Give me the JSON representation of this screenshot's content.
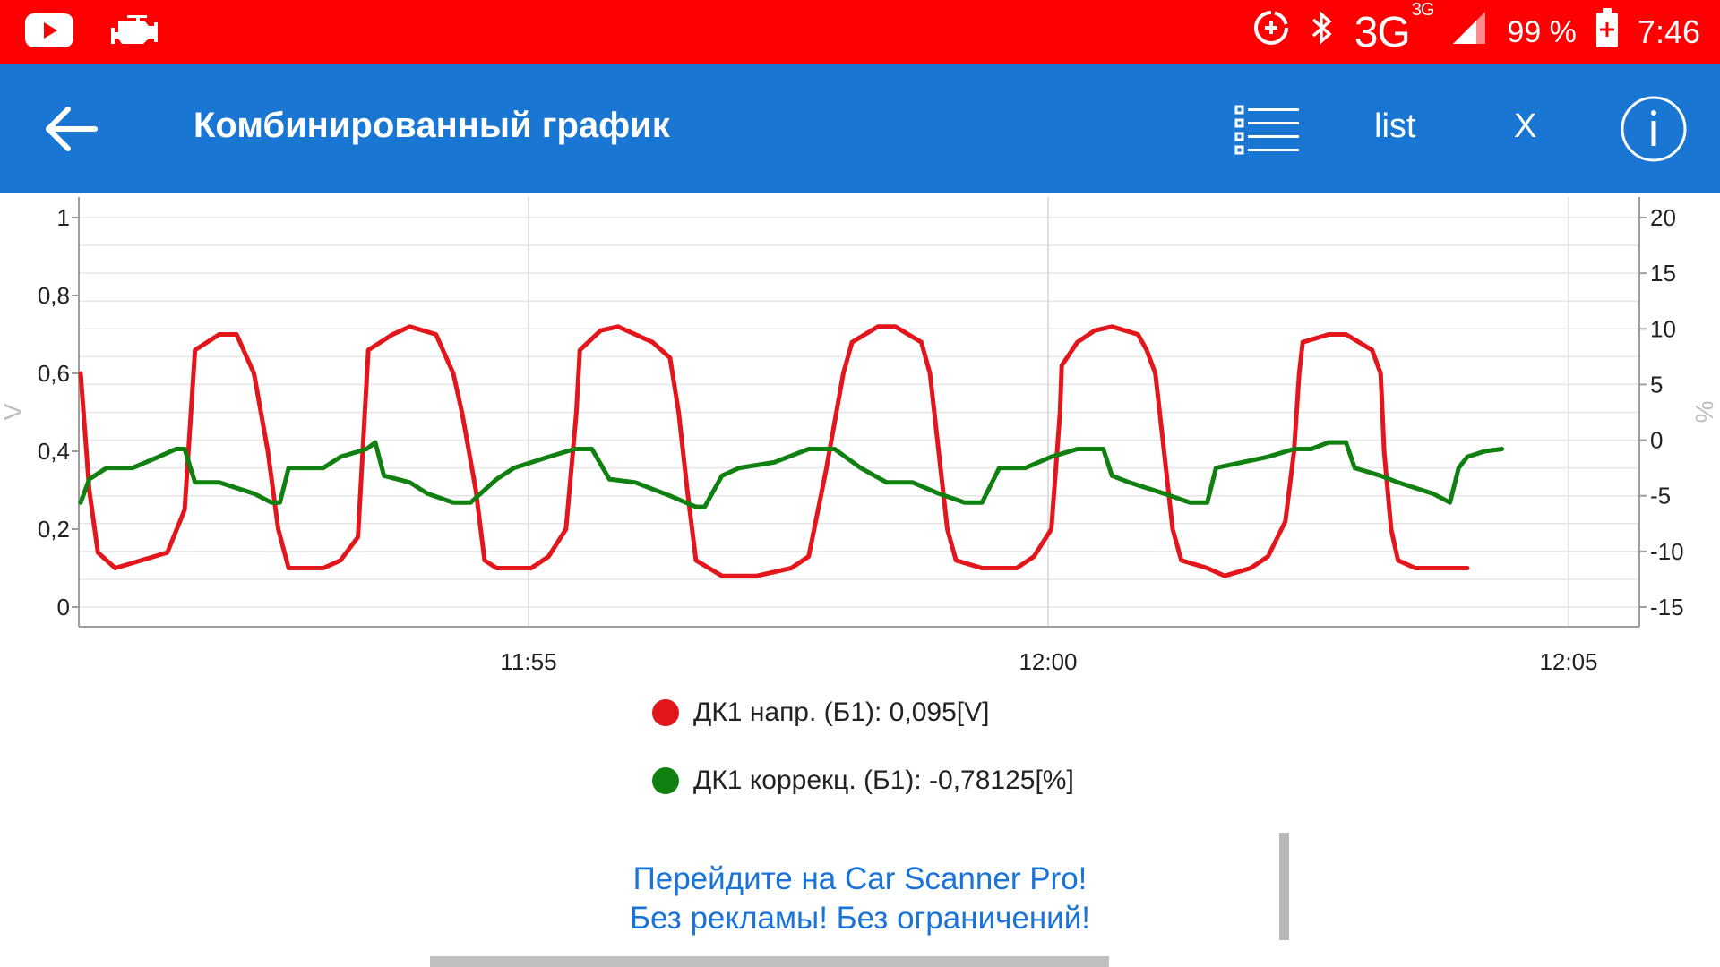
{
  "status_bar": {
    "background": "#ff0000",
    "left_icons": [
      "youtube-icon",
      "check-engine-icon"
    ],
    "right_icons": [
      "data-saver-icon",
      "bluetooth-icon",
      "signal-icon",
      "battery-charging-icon"
    ],
    "network": "3G",
    "network_super": "3G",
    "battery": "99 %",
    "time": "7:46"
  },
  "app_bar": {
    "background": "#1976d2",
    "back_icon": "arrow-left-icon",
    "title": "Комбинированный график",
    "list_icon": "list-icon",
    "list_label": "list",
    "close_label": "X",
    "info_icon": "info-icon"
  },
  "chart_data": {
    "type": "line",
    "x_ticks": [
      "11:55",
      "12:00",
      "12:05"
    ],
    "y_left": {
      "unit": "V",
      "ticks": [
        "0",
        "0,2",
        "0,4",
        "0,6",
        "0,8",
        "1"
      ],
      "range": [
        0,
        1
      ]
    },
    "y_right": {
      "unit": "%",
      "ticks": [
        "-15",
        "-10",
        "-5",
        "0",
        "5",
        "10",
        "15",
        "20"
      ],
      "range": [
        -15,
        20
      ]
    },
    "grid": true,
    "series": [
      {
        "name": "ДК1 напр. (Б1)",
        "color": "#e3161b",
        "axis": "left",
        "values": [
          [
            0,
            0.6
          ],
          [
            0.5,
            0.3
          ],
          [
            1,
            0.14
          ],
          [
            2,
            0.1
          ],
          [
            5,
            0.14
          ],
          [
            6,
            0.25
          ],
          [
            6.6,
            0.66
          ],
          [
            8,
            0.7
          ],
          [
            9,
            0.7
          ],
          [
            10,
            0.6
          ],
          [
            10.8,
            0.4
          ],
          [
            11.4,
            0.2
          ],
          [
            12,
            0.1
          ],
          [
            14,
            0.1
          ],
          [
            15,
            0.12
          ],
          [
            16,
            0.18
          ],
          [
            16.4,
            0.5
          ],
          [
            16.6,
            0.66
          ],
          [
            18,
            0.7
          ],
          [
            19,
            0.72
          ],
          [
            20.5,
            0.7
          ],
          [
            21.5,
            0.6
          ],
          [
            22,
            0.5
          ],
          [
            22.8,
            0.3
          ],
          [
            23.3,
            0.12
          ],
          [
            24,
            0.1
          ],
          [
            26,
            0.1
          ],
          [
            27,
            0.13
          ],
          [
            28,
            0.2
          ],
          [
            28.6,
            0.5
          ],
          [
            28.8,
            0.66
          ],
          [
            30,
            0.71
          ],
          [
            31,
            0.72
          ],
          [
            32,
            0.7
          ],
          [
            33,
            0.68
          ],
          [
            34,
            0.64
          ],
          [
            34.5,
            0.5
          ],
          [
            35,
            0.3
          ],
          [
            35.5,
            0.12
          ],
          [
            37,
            0.08
          ],
          [
            39,
            0.08
          ],
          [
            41,
            0.1
          ],
          [
            42,
            0.13
          ],
          [
            43,
            0.35
          ],
          [
            44,
            0.6
          ],
          [
            44.5,
            0.68
          ],
          [
            46,
            0.72
          ],
          [
            47,
            0.72
          ],
          [
            48.5,
            0.68
          ],
          [
            49,
            0.6
          ],
          [
            49.5,
            0.4
          ],
          [
            50,
            0.2
          ],
          [
            50.5,
            0.12
          ],
          [
            52,
            0.1
          ],
          [
            54,
            0.1
          ],
          [
            55,
            0.13
          ],
          [
            56,
            0.2
          ],
          [
            56.5,
            0.5
          ],
          [
            56.6,
            0.62
          ],
          [
            57.5,
            0.68
          ],
          [
            58.5,
            0.71
          ],
          [
            59.5,
            0.72
          ],
          [
            61,
            0.7
          ],
          [
            61.5,
            0.66
          ],
          [
            62,
            0.6
          ],
          [
            62.5,
            0.4
          ],
          [
            63,
            0.2
          ],
          [
            63.5,
            0.12
          ],
          [
            65,
            0.1
          ],
          [
            66,
            0.08
          ],
          [
            67.5,
            0.1
          ],
          [
            68.5,
            0.13
          ],
          [
            69.5,
            0.22
          ],
          [
            70,
            0.4
          ],
          [
            70.3,
            0.6
          ],
          [
            70.5,
            0.68
          ],
          [
            72,
            0.7
          ],
          [
            73,
            0.7
          ],
          [
            74.5,
            0.66
          ],
          [
            75,
            0.6
          ],
          [
            75.2,
            0.4
          ],
          [
            75.6,
            0.2
          ],
          [
            76,
            0.12
          ],
          [
            77,
            0.1
          ],
          [
            80,
            0.1
          ]
        ]
      },
      {
        "name": "ДК1 коррекц. (Б1)",
        "color": "#108010",
        "axis": "right",
        "values": [
          [
            0,
            -5.6
          ],
          [
            0.5,
            -3.5
          ],
          [
            1.5,
            -2.5
          ],
          [
            3,
            -2.5
          ],
          [
            4.5,
            -1.5
          ],
          [
            5.5,
            -0.8
          ],
          [
            6,
            -0.8
          ],
          [
            6.6,
            -3.8
          ],
          [
            8,
            -3.8
          ],
          [
            10,
            -4.8
          ],
          [
            11,
            -5.6
          ],
          [
            11.5,
            -5.6
          ],
          [
            12,
            -2.5
          ],
          [
            14,
            -2.5
          ],
          [
            15,
            -1.5
          ],
          [
            16.5,
            -0.8
          ],
          [
            17,
            -0.2
          ],
          [
            17.5,
            -3.2
          ],
          [
            19,
            -3.8
          ],
          [
            20,
            -4.8
          ],
          [
            21.5,
            -5.6
          ],
          [
            22.5,
            -5.6
          ],
          [
            24,
            -3.5
          ],
          [
            25,
            -2.5
          ],
          [
            27,
            -1.5
          ],
          [
            28.5,
            -0.8
          ],
          [
            29.5,
            -0.8
          ],
          [
            30.5,
            -3.5
          ],
          [
            32,
            -3.8
          ],
          [
            34,
            -5
          ],
          [
            35.5,
            -6
          ],
          [
            36,
            -6
          ],
          [
            37,
            -3.2
          ],
          [
            38,
            -2.5
          ],
          [
            40,
            -2
          ],
          [
            42,
            -0.8
          ],
          [
            43.5,
            -0.8
          ],
          [
            45,
            -2.5
          ],
          [
            46.5,
            -3.8
          ],
          [
            48,
            -3.8
          ],
          [
            49.5,
            -4.8
          ],
          [
            51,
            -5.6
          ],
          [
            52,
            -5.6
          ],
          [
            53,
            -2.5
          ],
          [
            54.5,
            -2.5
          ],
          [
            56,
            -1.5
          ],
          [
            57.5,
            -0.8
          ],
          [
            59,
            -0.8
          ],
          [
            59.5,
            -3.2
          ],
          [
            60.5,
            -3.8
          ],
          [
            62.5,
            -4.8
          ],
          [
            64,
            -5.6
          ],
          [
            65,
            -5.6
          ],
          [
            65.5,
            -2.5
          ],
          [
            68.5,
            -1.5
          ],
          [
            70,
            -0.8
          ],
          [
            71,
            -0.8
          ],
          [
            72,
            -0.2
          ],
          [
            73,
            -0.2
          ],
          [
            73.5,
            -2.5
          ],
          [
            75,
            -3.2
          ],
          [
            76,
            -3.8
          ],
          [
            78,
            -4.8
          ],
          [
            79,
            -5.6
          ],
          [
            79.5,
            -2.5
          ],
          [
            80,
            -1.5
          ],
          [
            81,
            -1
          ],
          [
            82,
            -0.8
          ]
        ]
      }
    ]
  },
  "legend": {
    "items": [
      {
        "color": "#e3161b",
        "text": "ДК1 напр. (Б1): 0,095[V]"
      },
      {
        "color": "#108010",
        "text": "ДК1 коррекц. (Б1): -0,78125[%]"
      }
    ]
  },
  "promo": {
    "line1": "Перейдите на Car Scanner Pro!",
    "line2": "Без рекламы! Без ограничений!",
    "color": "#1a73d9"
  }
}
